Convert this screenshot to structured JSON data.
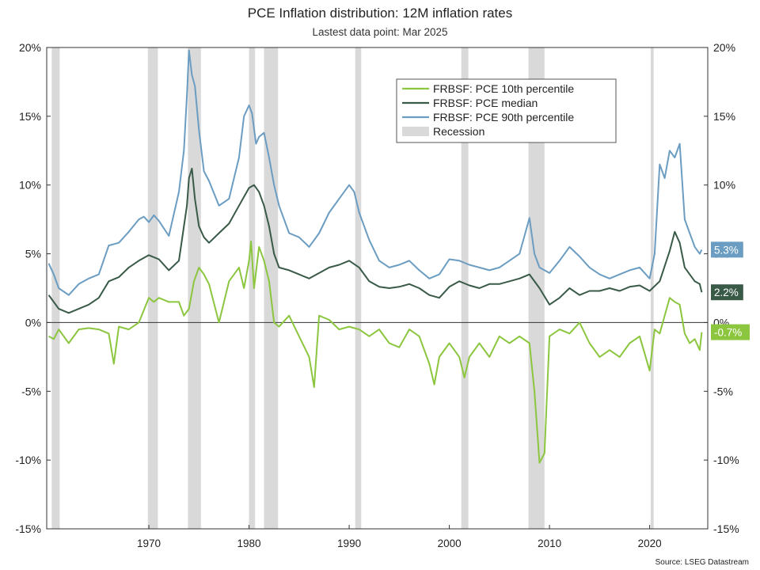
{
  "chart_data": {
    "type": "line",
    "title": "PCE Inflation distribution: 12M inflation rates",
    "subtitle": "Lastest data point: Mar 2025",
    "source": "Source: LSEG Datastream",
    "y_axis_unit": "percent",
    "ylim": [
      -15,
      20
    ],
    "yticks": [
      "20%",
      "15%",
      "10%",
      "5%",
      "0%",
      "-5%",
      "-10%",
      "-15%"
    ],
    "xlim": [
      1959.8,
      2025.8
    ],
    "xticks": [
      "1970",
      "1980",
      "1990",
      "2000",
      "2010",
      "2020"
    ],
    "legend_position": "top-right",
    "grid": false,
    "colors": {
      "p10": "#8cc63f",
      "median": "#3a5a48",
      "p90": "#6b9dc2",
      "recession": "#d9d9d9",
      "zero_line": "#333333"
    },
    "recessions": [
      [
        1960.3,
        1961.1
      ],
      [
        1969.9,
        1970.9
      ],
      [
        1973.9,
        1975.2
      ],
      [
        1980.0,
        1980.6
      ],
      [
        1981.5,
        1982.9
      ],
      [
        1990.6,
        1991.2
      ],
      [
        2001.2,
        2001.9
      ],
      [
        2007.9,
        2009.5
      ],
      [
        2020.1,
        2020.4
      ]
    ],
    "legend": [
      {
        "key": "p10",
        "label": "FRBSF: PCE 10th percentile"
      },
      {
        "key": "median",
        "label": "FRBSF: PCE median"
      },
      {
        "key": "p90",
        "label": "FRBSF: PCE 90th percentile"
      },
      {
        "key": "recession",
        "label": "Recession"
      }
    ],
    "end_labels": [
      {
        "key": "p90",
        "text": "5.3%",
        "value": 5.3
      },
      {
        "key": "median",
        "text": "2.2%",
        "value": 2.2
      },
      {
        "key": "p10",
        "text": "-0.7%",
        "value": -0.7
      }
    ],
    "series": [
      {
        "key": "p90",
        "name": "FRBSF: PCE 90th percentile",
        "x": [
          1960,
          1960.5,
          1961,
          1962,
          1963,
          1964,
          1965,
          1966,
          1967,
          1968,
          1969,
          1969.5,
          1970,
          1970.5,
          1971,
          1972,
          1973,
          1973.5,
          1973.8,
          1974,
          1974.3,
          1974.6,
          1975,
          1975.5,
          1976,
          1977,
          1978,
          1979,
          1979.5,
          1980,
          1980.3,
          1980.7,
          1981,
          1981.5,
          1982,
          1982.5,
          1983,
          1984,
          1985,
          1986,
          1987,
          1988,
          1989,
          1990,
          1990.5,
          1991,
          1992,
          1993,
          1994,
          1995,
          1996,
          1997,
          1998,
          1999,
          2000,
          2001,
          2002,
          2003,
          2004,
          2005,
          2006,
          2007,
          2008,
          2008.5,
          2009,
          2009.5,
          2010,
          2011,
          2012,
          2013,
          2014,
          2015,
          2016,
          2017,
          2018,
          2019,
          2020,
          2020.5,
          2021,
          2021.5,
          2022,
          2022.5,
          2023,
          2023.5,
          2024,
          2024.5,
          2025,
          2025.2
        ],
        "y": [
          4.3,
          3.5,
          2.5,
          2.0,
          2.8,
          3.2,
          3.5,
          5.6,
          5.8,
          6.6,
          7.5,
          7.7,
          7.3,
          7.8,
          7.4,
          6.3,
          9.5,
          12.5,
          16.5,
          19.8,
          18.0,
          17.2,
          14.0,
          11.0,
          10.3,
          8.5,
          9.0,
          12.0,
          15.0,
          15.8,
          15.2,
          13.0,
          13.5,
          13.8,
          12.0,
          10.0,
          8.5,
          6.5,
          6.2,
          5.5,
          6.5,
          8.0,
          9.0,
          10.0,
          9.5,
          8.0,
          6.0,
          4.5,
          4.0,
          4.2,
          4.5,
          3.8,
          3.2,
          3.5,
          4.6,
          4.5,
          4.2,
          4.0,
          3.8,
          4.0,
          4.5,
          5.0,
          7.6,
          5.0,
          4.0,
          3.8,
          3.6,
          4.5,
          5.5,
          4.8,
          4.0,
          3.5,
          3.2,
          3.5,
          3.8,
          4.0,
          3.2,
          5.0,
          11.5,
          10.5,
          12.5,
          12.0,
          13.0,
          7.5,
          6.5,
          5.5,
          5.0,
          5.3
        ]
      },
      {
        "key": "median",
        "name": "FRBSF: PCE median",
        "x": [
          1960,
          1960.5,
          1961,
          1962,
          1963,
          1964,
          1965,
          1966,
          1967,
          1968,
          1969,
          1970,
          1971,
          1972,
          1973,
          1973.8,
          1974,
          1974.3,
          1974.6,
          1975,
          1975.5,
          1976,
          1977,
          1978,
          1979,
          1980,
          1980.5,
          1981,
          1981.5,
          1982,
          1982.5,
          1983,
          1984,
          1985,
          1986,
          1987,
          1988,
          1989,
          1990,
          1991,
          1992,
          1993,
          1994,
          1995,
          1996,
          1997,
          1998,
          1999,
          2000,
          2001,
          2002,
          2003,
          2004,
          2005,
          2006,
          2007,
          2008,
          2009,
          2010,
          2011,
          2012,
          2013,
          2014,
          2015,
          2016,
          2017,
          2018,
          2019,
          2020,
          2021,
          2022,
          2022.5,
          2023,
          2023.5,
          2024,
          2024.5,
          2025,
          2025.2
        ],
        "y": [
          2.0,
          1.5,
          1.0,
          0.7,
          1.0,
          1.3,
          1.8,
          3.0,
          3.3,
          4.0,
          4.5,
          4.9,
          4.6,
          3.8,
          4.5,
          8.5,
          10.5,
          11.2,
          9.0,
          7.0,
          6.2,
          5.8,
          6.5,
          7.2,
          8.5,
          9.8,
          10.0,
          9.5,
          8.5,
          7.0,
          5.0,
          4.0,
          3.8,
          3.5,
          3.2,
          3.6,
          4.0,
          4.2,
          4.5,
          4.0,
          3.0,
          2.6,
          2.5,
          2.6,
          2.8,
          2.5,
          2.0,
          1.8,
          2.6,
          3.0,
          2.7,
          2.5,
          2.8,
          2.8,
          3.0,
          3.2,
          3.5,
          2.5,
          1.3,
          1.8,
          2.5,
          2.0,
          2.3,
          2.3,
          2.5,
          2.3,
          2.6,
          2.7,
          2.3,
          3.0,
          5.2,
          6.6,
          5.8,
          4.0,
          3.5,
          3.0,
          2.8,
          2.2
        ]
      },
      {
        "key": "p10",
        "name": "FRBSF: PCE 10th percentile",
        "x": [
          1960,
          1960.5,
          1961,
          1962,
          1963,
          1964,
          1965,
          1966,
          1966.5,
          1967,
          1968,
          1969,
          1970,
          1970.5,
          1971,
          1972,
          1973,
          1973.5,
          1974,
          1974.5,
          1975,
          1975.5,
          1976,
          1977,
          1978,
          1979,
          1979.5,
          1980,
          1980.2,
          1980.5,
          1981,
          1981.5,
          1982,
          1982.5,
          1983,
          1984,
          1985,
          1986,
          1986.5,
          1987,
          1988,
          1989,
          1990,
          1991,
          1992,
          1993,
          1994,
          1995,
          1996,
          1997,
          1998,
          1998.5,
          1999,
          2000,
          2001,
          2001.5,
          2002,
          2003,
          2004,
          2005,
          2006,
          2007,
          2008,
          2008.5,
          2009,
          2009.5,
          2010,
          2011,
          2012,
          2013,
          2014,
          2015,
          2016,
          2017,
          2018,
          2019,
          2020,
          2020.5,
          2021,
          2022,
          2022.5,
          2023,
          2023.5,
          2024,
          2024.5,
          2025,
          2025.2
        ],
        "y": [
          -1.0,
          -1.2,
          -0.5,
          -1.5,
          -0.5,
          -0.4,
          -0.5,
          -0.8,
          -3.0,
          -0.3,
          -0.5,
          0.0,
          1.8,
          1.5,
          1.8,
          1.5,
          1.5,
          0.5,
          1.0,
          3.0,
          4.0,
          3.5,
          2.8,
          0.0,
          3.0,
          4.0,
          2.5,
          4.5,
          5.9,
          2.5,
          5.5,
          4.5,
          3.0,
          0.0,
          -0.3,
          0.5,
          -1.0,
          -2.5,
          -4.7,
          0.5,
          0.2,
          -0.5,
          -0.3,
          -0.5,
          -1.0,
          -0.5,
          -1.5,
          -1.8,
          -0.5,
          -1.0,
          -3.0,
          -4.5,
          -2.5,
          -1.5,
          -2.5,
          -4.0,
          -2.5,
          -1.5,
          -2.5,
          -1.0,
          -1.5,
          -1.0,
          -1.5,
          -5.0,
          -10.2,
          -9.5,
          -1.0,
          -0.5,
          -0.8,
          0.0,
          -1.5,
          -2.5,
          -2.0,
          -2.5,
          -1.5,
          -1.0,
          -3.5,
          -0.5,
          -0.8,
          1.8,
          1.5,
          1.3,
          -0.8,
          -1.5,
          -1.2,
          -2.0,
          -0.7
        ]
      }
    ]
  }
}
